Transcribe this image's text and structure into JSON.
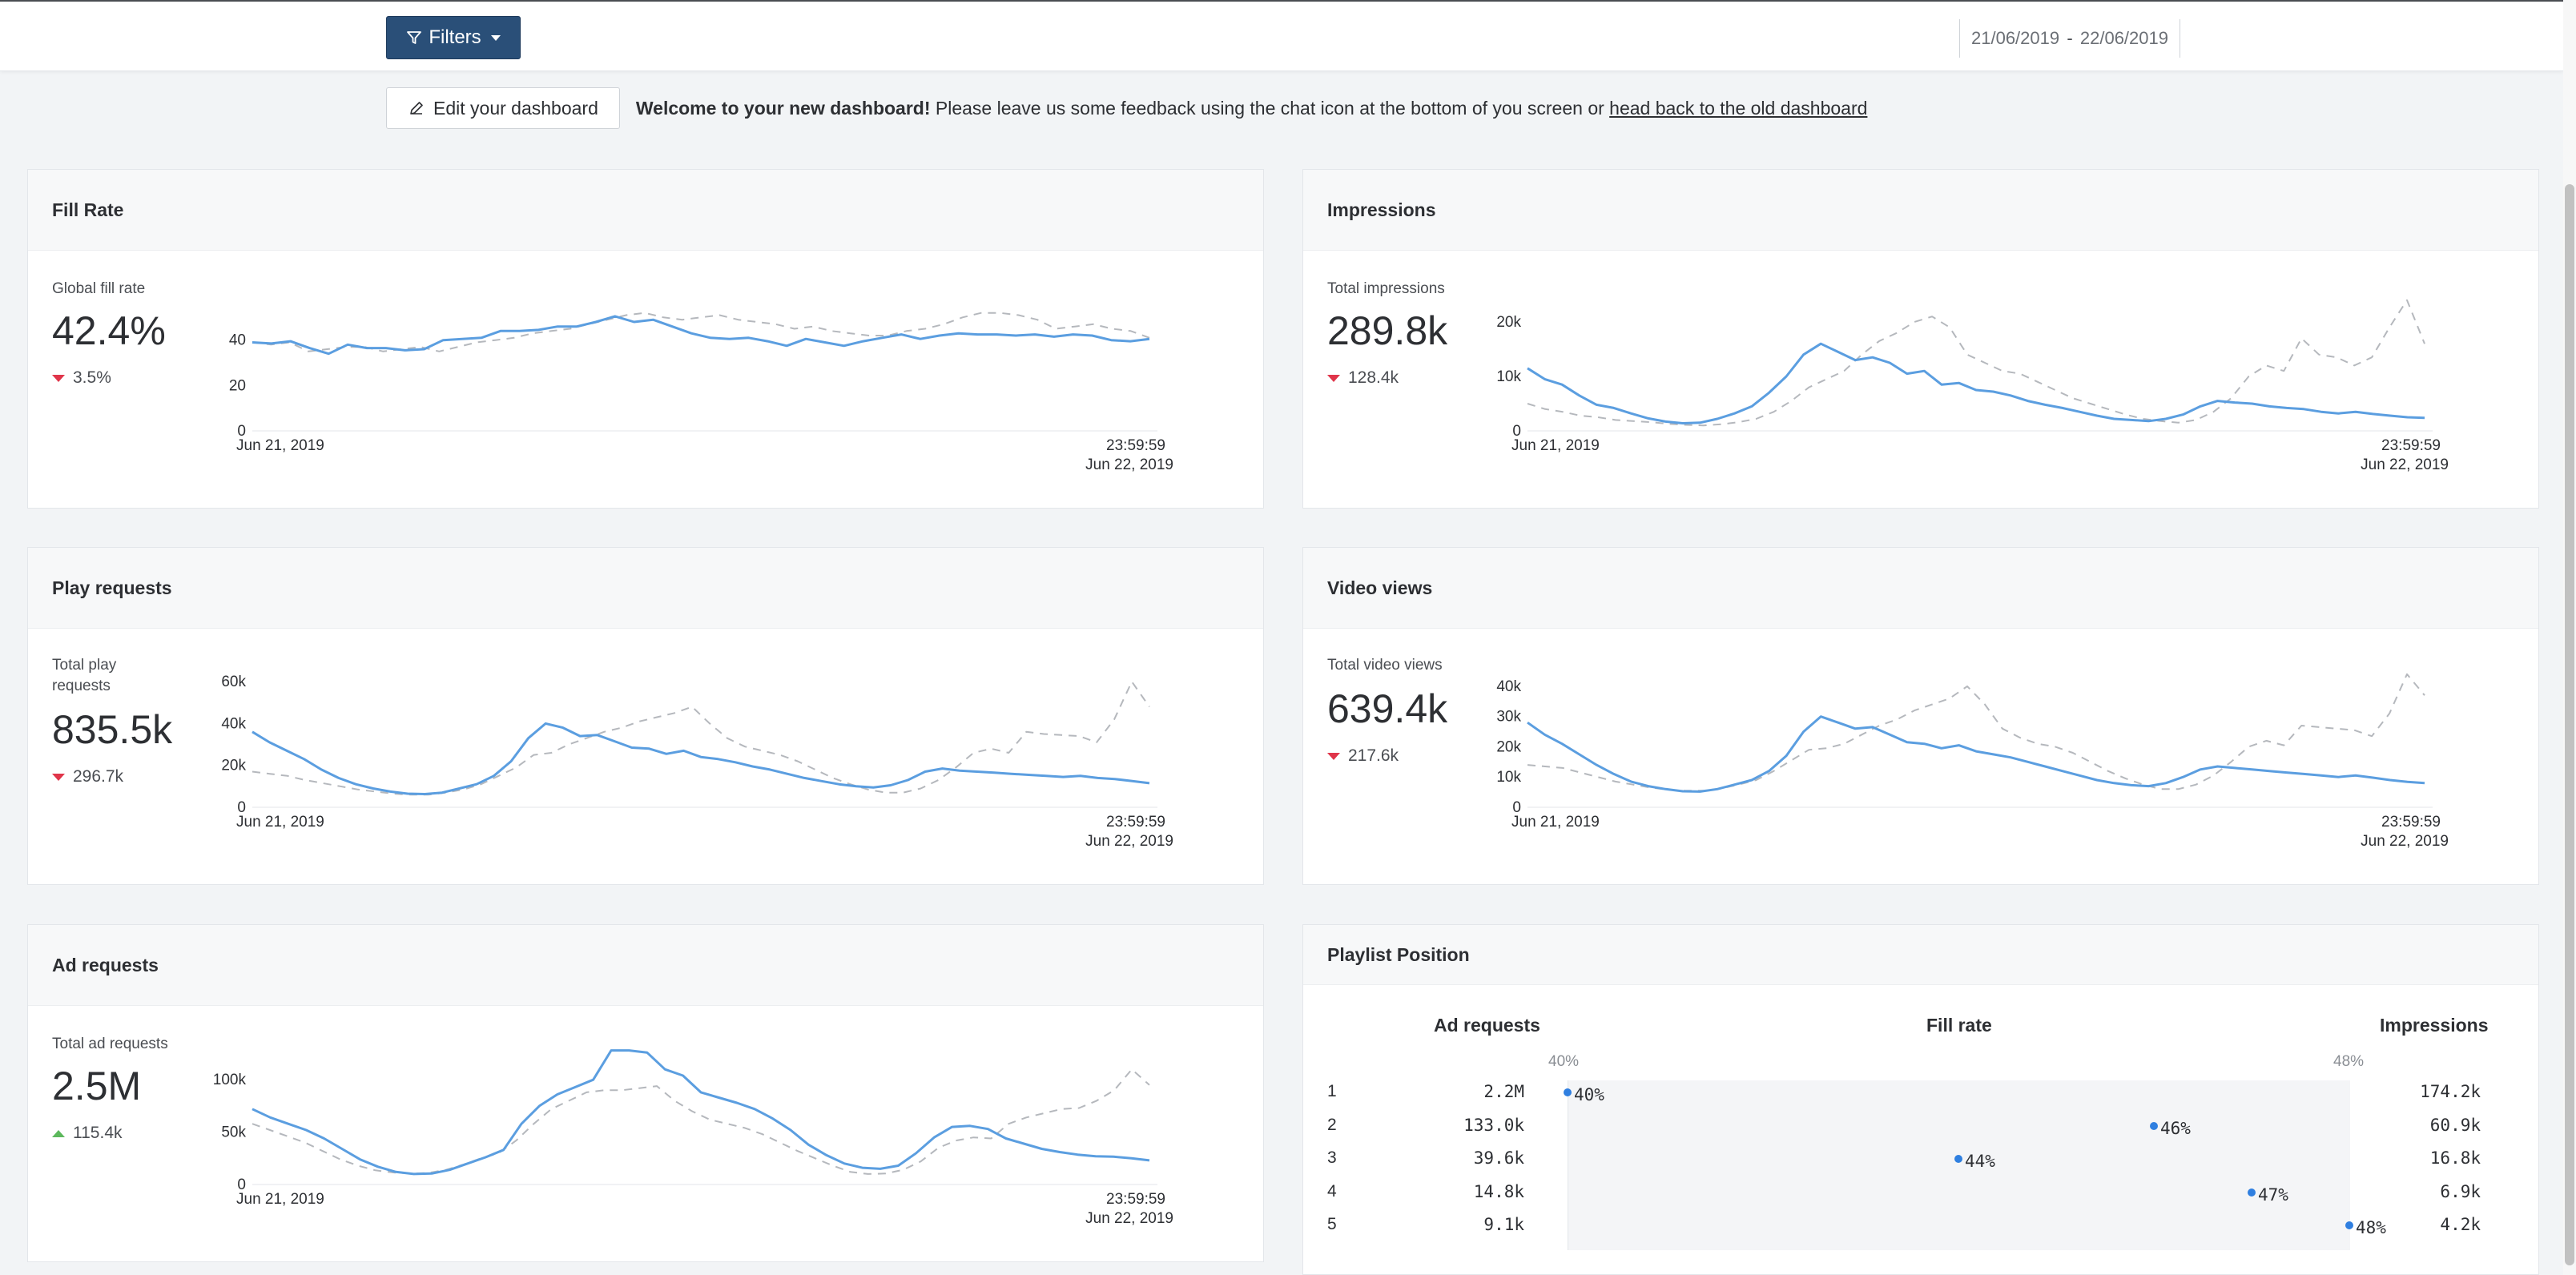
{
  "topbar": {
    "filters_label": "Filters",
    "date_from": "21/06/2019",
    "date_to": "22/06/2019",
    "date_separator": "-"
  },
  "welcome": {
    "edit_label": "Edit your dashboard",
    "bold": "Welcome to your new dashboard!",
    "text": " Please leave us some feedback using the chat icon at the bottom of you screen or ",
    "link": "head back to the old dashboard"
  },
  "colors": {
    "series": "#5b9ee0",
    "previous": "#b5b8bd",
    "down": "#e0354a",
    "up": "#5cb85c",
    "dot": "#2f7fe0"
  },
  "cards": {
    "fill_rate": {
      "title": "Fill Rate",
      "label": "Global fill rate",
      "value": "42.4%",
      "change": "3.5%",
      "direction": "down",
      "chart_data": {
        "type": "line",
        "ylim": [
          0,
          60
        ],
        "yticks": [
          "0",
          "20",
          "40"
        ],
        "ytick_values": [
          0,
          20,
          40
        ],
        "x_start": "Jun 21, 2019",
        "x_end_time": "23:59:59",
        "x_end": "Jun 22, 2019",
        "series": [
          {
            "values": [
              39,
              38.5,
              39.5,
              36.5,
              34,
              38,
              36.5,
              36.5,
              35.5,
              36,
              40,
              40.5,
              41,
              44,
              44,
              44.5,
              46,
              46,
              48,
              50.5,
              48,
              49,
              46,
              43,
              41,
              40.5,
              41,
              39.5,
              37.5,
              40.5,
              39,
              37.5,
              39.5,
              41,
              42.5,
              40.5,
              42,
              43,
              42.5,
              42.5,
              42,
              42.5,
              41.5,
              42.5,
              42,
              40,
              39.5,
              40.5
            ]
          },
          {
            "values": [
              39,
              38,
              39,
              35,
              36,
              37,
              37,
              35,
              36,
              37,
              35,
              37,
              39,
              40,
              41,
              43,
              44,
              45,
              47,
              49,
              51,
              52,
              50,
              49,
              50,
              51,
              49,
              48,
              47,
              45,
              46,
              44,
              43,
              42,
              42,
              44,
              45,
              47,
              50,
              52,
              52,
              51,
              49,
              45,
              46,
              47,
              45,
              44,
              41
            ]
          }
        ]
      }
    },
    "impressions": {
      "title": "Impressions",
      "label": "Total impressions",
      "value": "289.8k",
      "change": "128.4k",
      "direction": "down",
      "chart_data": {
        "type": "line",
        "ylim": [
          0,
          25000
        ],
        "yticks": [
          "0",
          "10k",
          "20k"
        ],
        "ytick_values": [
          0,
          10000,
          20000
        ],
        "x_start": "Jun 21, 2019",
        "x_end_time": "23:59:59",
        "x_end": "Jun 22, 2019",
        "series": [
          {
            "values": [
              11500,
              9500,
              8500,
              6500,
              4800,
              4200,
              3200,
              2300,
              1700,
              1400,
              1500,
              2200,
              3200,
              4500,
              7000,
              10000,
              14000,
              16000,
              14500,
              13000,
              13500,
              12500,
              10500,
              11000,
              8500,
              8800,
              7500,
              7200,
              6500,
              5500,
              4800,
              4200,
              3500,
              2800,
              2200,
              2000,
              1800,
              2200,
              3000,
              4500,
              5500,
              5200,
              5000,
              4500,
              4200,
              4000,
              3500,
              3200,
              3500,
              3100,
              2800,
              2500,
              2400
            ]
          },
          {
            "values": [
              5000,
              4000,
              3500,
              2800,
              2500,
              2000,
              1800,
              1600,
              1300,
              1100,
              1000,
              1200,
              1600,
              2200,
              3500,
              5500,
              8000,
              9500,
              11000,
              14000,
              16500,
              18000,
              20000,
              21000,
              19000,
              14000,
              12500,
              11000,
              10500,
              9000,
              7500,
              6000,
              5000,
              4000,
              3000,
              2200,
              1800,
              1500,
              2000,
              3500,
              6000,
              10000,
              12000,
              11000,
              17000,
              14000,
              13500,
              12000,
              13500,
              19000,
              24000,
              16000
            ]
          }
        ]
      }
    },
    "play_requests": {
      "title": "Play requests",
      "label": "Total play requests",
      "value": "835.5k",
      "change": "296.7k",
      "direction": "down",
      "chart_data": {
        "type": "line",
        "ylim": [
          0,
          65000
        ],
        "yticks": [
          "0",
          "20k",
          "40k",
          "60k"
        ],
        "ytick_values": [
          0,
          20000,
          40000,
          60000
        ],
        "x_start": "Jun 21, 2019",
        "x_end_time": "23:59:59",
        "x_end": "Jun 22, 2019",
        "series": [
          {
            "values": [
              36000,
              31000,
              27000,
              23000,
              18000,
              14000,
              11000,
              9000,
              7500,
              6500,
              6300,
              7000,
              9000,
              11000,
              15000,
              22000,
              33000,
              40000,
              38000,
              34000,
              34500,
              31500,
              28500,
              28000,
              25500,
              27000,
              24000,
              23000,
              21500,
              19500,
              18000,
              16000,
              14000,
              12500,
              11000,
              10000,
              9500,
              10500,
              13000,
              17000,
              18500,
              17500,
              17000,
              16500,
              16000,
              15500,
              15000,
              14500,
              15000,
              14000,
              13500,
              12500,
              11500
            ]
          },
          {
            "values": [
              17000,
              16000,
              15000,
              13000,
              11500,
              10000,
              8500,
              7500,
              6500,
              6000,
              6000,
              7000,
              8500,
              11000,
              15000,
              19000,
              25000,
              26000,
              30000,
              33000,
              36000,
              38000,
              41000,
              43000,
              45000,
              48000,
              40000,
              33000,
              29000,
              27000,
              25000,
              22000,
              18000,
              14000,
              11000,
              8500,
              7000,
              7000,
              9000,
              13000,
              19000,
              26000,
              28000,
              26000,
              36000,
              35000,
              34500,
              34000,
              31000,
              42000,
              60000,
              48000
            ]
          }
        ]
      }
    },
    "video_views": {
      "title": "Video views",
      "label": "Total video views",
      "value": "639.4k",
      "change": "217.6k",
      "direction": "down",
      "chart_data": {
        "type": "line",
        "ylim": [
          0,
          45000
        ],
        "yticks": [
          "0",
          "10k",
          "20k",
          "30k",
          "40k"
        ],
        "ytick_values": [
          0,
          10000,
          20000,
          30000,
          40000
        ],
        "x_start": "Jun 21, 2019",
        "x_end_time": "23:59:59",
        "x_end": "Jun 22, 2019",
        "series": [
          {
            "values": [
              28000,
              24000,
              21000,
              17500,
              14000,
              11000,
              8500,
              7000,
              6000,
              5300,
              5200,
              6000,
              7500,
              9000,
              12000,
              17000,
              25000,
              30000,
              28000,
              26000,
              26500,
              24000,
              21500,
              21000,
              19500,
              20500,
              18500,
              17500,
              16500,
              15000,
              13500,
              12000,
              10500,
              9000,
              8000,
              7300,
              7000,
              8000,
              10000,
              12500,
              13500,
              13000,
              12500,
              12000,
              11500,
              11000,
              10500,
              10000,
              10500,
              9800,
              9000,
              8400,
              8000
            ]
          },
          {
            "values": [
              14000,
              13500,
              13000,
              11500,
              10000,
              8500,
              7500,
              6500,
              5800,
              5500,
              5500,
              6200,
              7500,
              9000,
              12000,
              15500,
              19000,
              19500,
              21000,
              24000,
              27000,
              29000,
              32000,
              34000,
              36000,
              40000,
              34000,
              26000,
              23000,
              21000,
              20000,
              18000,
              15000,
              12000,
              9500,
              7500,
              6000,
              6000,
              7500,
              10500,
              15000,
              20000,
              22000,
              20500,
              27000,
              26500,
              26000,
              25500,
              23500,
              31000,
              44000,
              37000
            ]
          }
        ]
      }
    },
    "ad_requests": {
      "title": "Ad requests",
      "label": "Total ad requests",
      "value": "2.5M",
      "change": "115.4k",
      "direction": "up",
      "chart_data": {
        "type": "line",
        "ylim": [
          0,
          130000
        ],
        "yticks": [
          "0",
          "50k",
          "100k"
        ],
        "ytick_values": [
          0,
          50000,
          100000
        ],
        "x_start": "Jun 21, 2019",
        "x_end_time": "23:59:59",
        "x_end": "Jun 22, 2019",
        "series": [
          {
            "values": [
              72000,
              64000,
              58000,
              52000,
              44000,
              34000,
              24000,
              17000,
              12000,
              10000,
              10500,
              14000,
              20000,
              26000,
              33000,
              58000,
              75000,
              86000,
              93000,
              100000,
              128000,
              128000,
              126000,
              110000,
              104000,
              88000,
              83000,
              78000,
              72000,
              63000,
              52000,
              38000,
              28000,
              20000,
              16000,
              15000,
              18000,
              30000,
              45000,
              55000,
              56000,
              53000,
              44000,
              39000,
              34000,
              31000,
              28500,
              27000,
              26500,
              25000,
              23000
            ]
          },
          {
            "values": [
              58000,
              52000,
              46000,
              40000,
              32000,
              24000,
              18000,
              13500,
              11500,
              10500,
              11000,
              14000,
              19000,
              25000,
              30000,
              42000,
              58000,
              72000,
              80000,
              88000,
              90000,
              90000,
              92000,
              94000,
              80000,
              70000,
              62000,
              58000,
              54000,
              48000,
              40000,
              32000,
              25000,
              18000,
              12000,
              10000,
              10500,
              14000,
              22000,
              35000,
              42000,
              45000,
              44000,
              58000,
              64000,
              68000,
              72000,
              73000,
              80000,
              90000,
              110000,
              95000
            ]
          }
        ]
      }
    }
  },
  "playlist": {
    "title": "Playlist Position",
    "col_ad_requests": "Ad requests",
    "col_fill_rate": "Fill rate",
    "col_impressions": "Impressions",
    "scale_min": "40%",
    "scale_max": "48%",
    "scale_range": [
      40,
      48
    ],
    "rows": [
      {
        "pos": "1",
        "ad_requests": "2.2M",
        "fill_rate": 40,
        "fill_rate_label": "40%",
        "impressions": "174.2k"
      },
      {
        "pos": "2",
        "ad_requests": "133.0k",
        "fill_rate": 46,
        "fill_rate_label": "46%",
        "impressions": "60.9k"
      },
      {
        "pos": "3",
        "ad_requests": "39.6k",
        "fill_rate": 44,
        "fill_rate_label": "44%",
        "impressions": "16.8k"
      },
      {
        "pos": "4",
        "ad_requests": "14.8k",
        "fill_rate": 47,
        "fill_rate_label": "47%",
        "impressions": "6.9k"
      },
      {
        "pos": "5",
        "ad_requests": "9.1k",
        "fill_rate": 48,
        "fill_rate_label": "48%",
        "impressions": "4.2k"
      }
    ]
  }
}
